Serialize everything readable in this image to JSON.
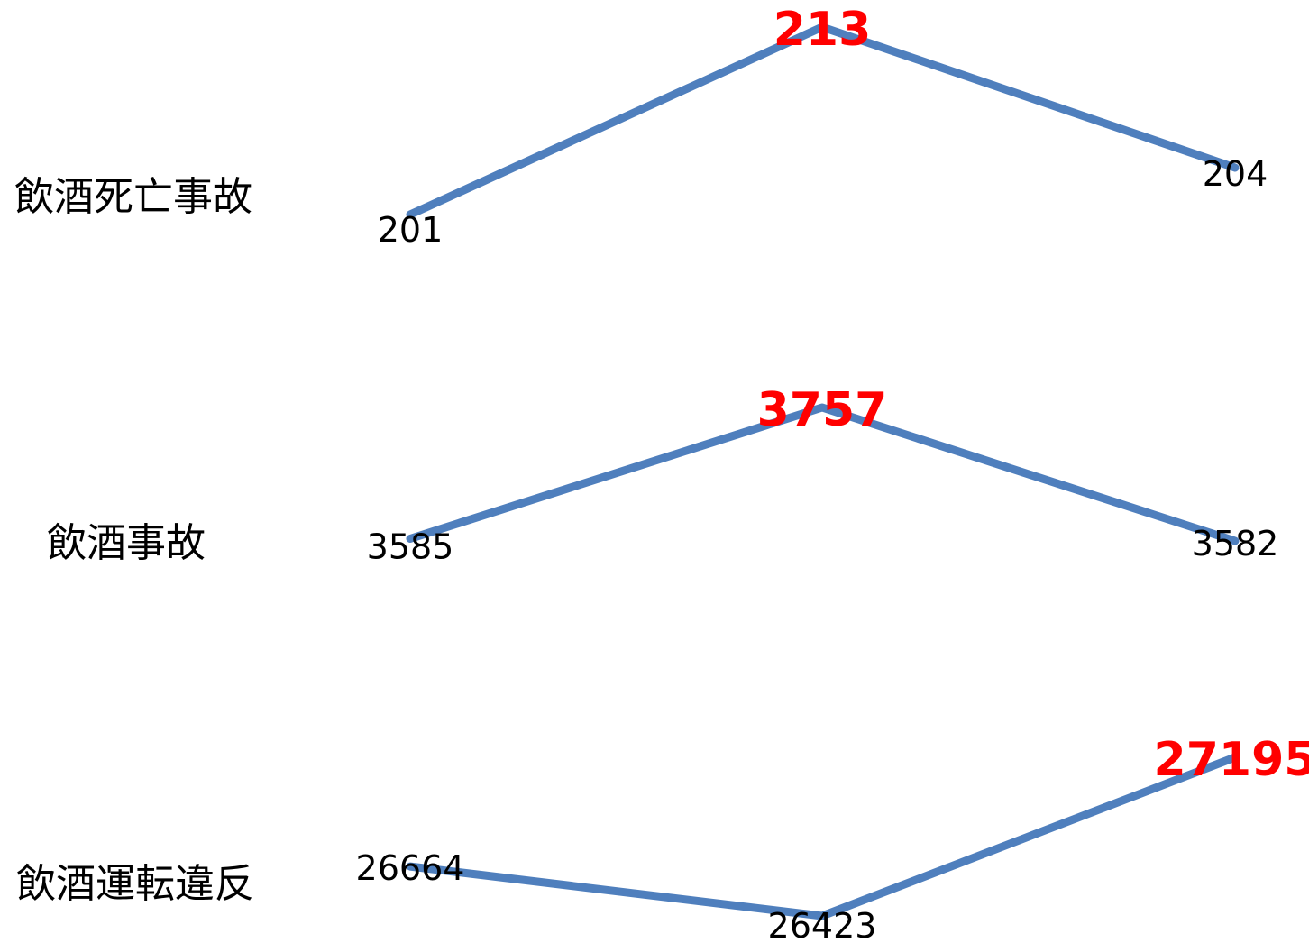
{
  "colors": {
    "line": "#4f7fbd",
    "max_label": "#ff0000",
    "label": "#000000",
    "background": "#ffffff"
  },
  "chart_data": [
    {
      "type": "line",
      "row_label": "飲酒死亡事故",
      "values": [
        201,
        213,
        204
      ],
      "highlight_index": 1
    },
    {
      "type": "line",
      "row_label": "飲酒事故",
      "values": [
        3585,
        3757,
        3582
      ],
      "highlight_index": 1
    },
    {
      "type": "line",
      "row_label": "飲酒運転違反",
      "values": [
        26664,
        26423,
        27195
      ],
      "highlight_index": 2
    }
  ]
}
